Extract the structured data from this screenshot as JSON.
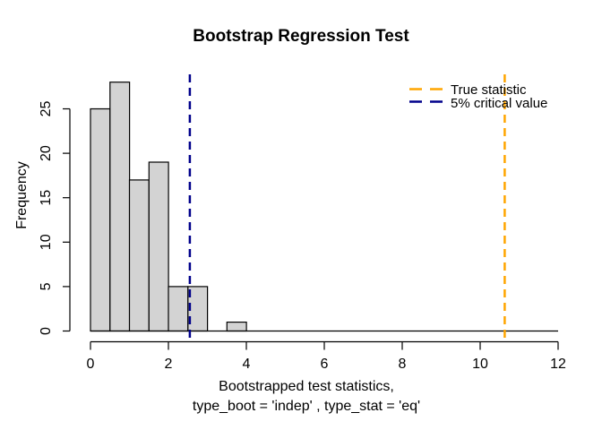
{
  "chart_data": {
    "type": "bar",
    "subtype": "histogram",
    "title": "Bootstrap Regression Test",
    "xlabel_line1": "Bootstrapped test statistics,",
    "xlabel_line2": "type_boot = 'indep' , type_stat = 'eq'",
    "ylabel": "Frequency",
    "breaks": [
      0,
      0.5,
      1.0,
      1.5,
      2.0,
      2.5,
      3.0,
      3.5,
      4.0
    ],
    "counts": [
      25,
      28,
      17,
      19,
      5,
      5,
      0,
      1
    ],
    "x_ticks": [
      0,
      2,
      4,
      6,
      8,
      10,
      12
    ],
    "y_ticks": [
      0,
      5,
      10,
      15,
      20,
      25
    ],
    "xlim": [
      0,
      12
    ],
    "ylim": [
      0,
      28
    ],
    "grid": false,
    "bar_fill": "#d3d3d3",
    "bar_stroke": "#000000",
    "vlines": [
      {
        "name": "true-statistic",
        "x": 10.63,
        "color": "#FFA500",
        "style": "dashed",
        "label": "True statistic"
      },
      {
        "name": "critical-value",
        "x": 2.55,
        "color": "#00008B",
        "style": "dashed",
        "label": "5% critical value"
      }
    ],
    "legend": {
      "position": "topright",
      "entries": [
        {
          "label": "True statistic",
          "color": "#FFA500",
          "line": "dashed"
        },
        {
          "label": "5% critical value",
          "color": "#00008B",
          "line": "dashed"
        }
      ]
    }
  }
}
